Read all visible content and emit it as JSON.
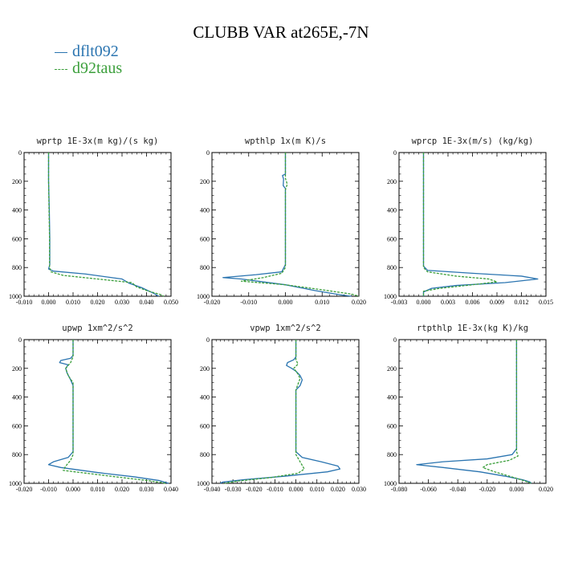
{
  "title": "CLUBB VAR at265E,-7N",
  "colors": {
    "dflt092": "#2a74b0",
    "d92taus": "#3b9f3b"
  },
  "legend": [
    {
      "name": "dflt092",
      "color": "#2a74b0",
      "style": "solid"
    },
    {
      "name": "d92taus",
      "color": "#3b9f3b",
      "style": "dashed"
    }
  ],
  "chart_data": [
    {
      "type": "line",
      "title": "wprtp  1E-3x(m kg)/(s kg)",
      "xlim": [
        -0.01,
        0.05
      ],
      "xticks": [
        -0.01,
        0.0,
        0.01,
        0.02,
        0.03,
        0.04,
        0.05
      ],
      "xtick_labels": [
        "-0.010",
        "0.000",
        "0.010",
        "0.020",
        "0.030",
        "0.040",
        "0.050"
      ],
      "ylim": [
        1000,
        0
      ],
      "yticks": [
        0,
        200,
        400,
        600,
        800,
        1000
      ],
      "ytick_labels": [
        "0",
        "200",
        "400",
        "600",
        "800",
        "1000"
      ],
      "series": [
        {
          "name": "dflt092",
          "points": [
            [
              0.0,
              0
            ],
            [
              0.0,
              200
            ],
            [
              0.0003,
              400
            ],
            [
              0.0005,
              600
            ],
            [
              0.0005,
              780
            ],
            [
              0.0,
              810
            ],
            [
              0.002,
              825
            ],
            [
              0.015,
              845
            ],
            [
              0.03,
              880
            ],
            [
              0.033,
              910
            ],
            [
              0.038,
              940
            ],
            [
              0.043,
              980
            ],
            [
              0.045,
              1000
            ]
          ]
        },
        {
          "name": "d92taus",
          "points": [
            [
              0.0,
              0
            ],
            [
              0.0,
              200
            ],
            [
              0.0002,
              400
            ],
            [
              0.0004,
              600
            ],
            [
              0.0004,
              800
            ],
            [
              0.001,
              830
            ],
            [
              0.006,
              855
            ],
            [
              0.02,
              880
            ],
            [
              0.034,
              905
            ],
            [
              0.036,
              935
            ],
            [
              0.04,
              960
            ],
            [
              0.046,
              990
            ],
            [
              0.047,
              1000
            ]
          ]
        }
      ]
    },
    {
      "type": "line",
      "title": "wpthlp  1x(m K)/s",
      "xlim": [
        -0.02,
        0.02
      ],
      "xticks": [
        -0.02,
        -0.01,
        0.0,
        0.01,
        0.02
      ],
      "xtick_labels": [
        "-0.020",
        "-0.010",
        "0.000",
        "0.010",
        "0.020"
      ],
      "ylim": [
        1000,
        0
      ],
      "yticks": [
        0,
        200,
        400,
        600,
        800,
        1000
      ],
      "ytick_labels": [
        "0",
        "200",
        "400",
        "600",
        "800",
        "1000"
      ],
      "series": [
        {
          "name": "dflt092",
          "points": [
            [
              0.0,
              0
            ],
            [
              0.0,
              150
            ],
            [
              -0.0008,
              160
            ],
            [
              -0.0005,
              185
            ],
            [
              -0.0006,
              230
            ],
            [
              0.0,
              250
            ],
            [
              0.0,
              400
            ],
            [
              0.0,
              600
            ],
            [
              0.0,
              780
            ],
            [
              -0.001,
              830
            ],
            [
              -0.008,
              850
            ],
            [
              -0.017,
              870
            ],
            [
              -0.012,
              880
            ],
            [
              0.0,
              920
            ],
            [
              0.008,
              960
            ],
            [
              0.015,
              990
            ],
            [
              0.018,
              1000
            ]
          ]
        },
        {
          "name": "d92taus",
          "points": [
            [
              0.0,
              0
            ],
            [
              0.0,
              180
            ],
            [
              0.0005,
              220
            ],
            [
              0.0,
              260
            ],
            [
              0.0,
              400
            ],
            [
              0.0,
              600
            ],
            [
              0.0,
              800
            ],
            [
              -0.001,
              840
            ],
            [
              -0.006,
              870
            ],
            [
              -0.012,
              895
            ],
            [
              0.0,
              920
            ],
            [
              0.01,
              955
            ],
            [
              0.018,
              985
            ],
            [
              0.02,
              1000
            ]
          ]
        }
      ]
    },
    {
      "type": "line",
      "title": "wprcp  1E-3x(m/s) (kg/kg)",
      "xlim": [
        -0.003,
        0.015
      ],
      "xticks": [
        -0.003,
        0.0,
        0.003,
        0.006,
        0.009,
        0.012,
        0.015
      ],
      "xtick_labels": [
        "-0.003",
        "0.000",
        "0.003",
        "0.006",
        "0.009",
        "0.012",
        "0.015"
      ],
      "ylim": [
        1000,
        0
      ],
      "yticks": [
        0,
        200,
        400,
        600,
        800,
        1000
      ],
      "ytick_labels": [
        "0",
        "200",
        "400",
        "600",
        "800",
        "1000"
      ],
      "series": [
        {
          "name": "dflt092",
          "points": [
            [
              0.0,
              0
            ],
            [
              0.0,
              200
            ],
            [
              0.0,
              400
            ],
            [
              0.0,
              600
            ],
            [
              0.0,
              790
            ],
            [
              0.0005,
              820
            ],
            [
              0.006,
              840
            ],
            [
              0.012,
              860
            ],
            [
              0.014,
              880
            ],
            [
              0.01,
              905
            ],
            [
              0.004,
              925
            ],
            [
              0.001,
              945
            ],
            [
              0.0,
              970
            ],
            [
              0.0,
              1000
            ]
          ]
        },
        {
          "name": "d92taus",
          "points": [
            [
              0.0,
              0
            ],
            [
              0.0,
              200
            ],
            [
              0.0,
              400
            ],
            [
              0.0,
              600
            ],
            [
              0.0,
              800
            ],
            [
              0.0005,
              830
            ],
            [
              0.004,
              860
            ],
            [
              0.008,
              880
            ],
            [
              0.009,
              900
            ],
            [
              0.006,
              920
            ],
            [
              0.002,
              945
            ],
            [
              0.0,
              965
            ],
            [
              0.0,
              1000
            ]
          ]
        }
      ]
    },
    {
      "type": "line",
      "title": "upwp  1xm^2/s^2",
      "xlim": [
        -0.02,
        0.04
      ],
      "xticks": [
        -0.02,
        -0.01,
        0.0,
        0.01,
        0.02,
        0.03,
        0.04
      ],
      "xtick_labels": [
        "-0.020",
        "-0.010",
        "0.000",
        "0.010",
        "0.020",
        "0.030",
        "0.040"
      ],
      "ylim": [
        1000,
        0
      ],
      "yticks": [
        0,
        200,
        400,
        600,
        800,
        1000
      ],
      "ytick_labels": [
        "0",
        "200",
        "400",
        "600",
        "800",
        "1000"
      ],
      "series": [
        {
          "name": "dflt092",
          "points": [
            [
              0.0,
              0
            ],
            [
              0.0,
              110
            ],
            [
              -0.001,
              130
            ],
            [
              -0.005,
              145
            ],
            [
              -0.0055,
              160
            ],
            [
              -0.002,
              175
            ],
            [
              -0.003,
              200
            ],
            [
              -0.0025,
              230
            ],
            [
              -0.001,
              280
            ],
            [
              0.0,
              320
            ],
            [
              0.0,
              500
            ],
            [
              0.0,
              700
            ],
            [
              0.0,
              780
            ],
            [
              -0.002,
              820
            ],
            [
              -0.008,
              850
            ],
            [
              -0.01,
              870
            ],
            [
              -0.005,
              890
            ],
            [
              0.01,
              925
            ],
            [
              0.025,
              955
            ],
            [
              0.035,
              980
            ],
            [
              0.039,
              1000
            ]
          ]
        },
        {
          "name": "d92taus",
          "points": [
            [
              0.0,
              0
            ],
            [
              0.0,
              120
            ],
            [
              -0.001,
              160
            ],
            [
              -0.003,
              200
            ],
            [
              -0.002,
              250
            ],
            [
              0.0,
              300
            ],
            [
              0.0,
              500
            ],
            [
              0.0,
              700
            ],
            [
              0.0,
              800
            ],
            [
              -0.001,
              840
            ],
            [
              -0.003,
              880
            ],
            [
              -0.004,
              910
            ],
            [
              0.008,
              935
            ],
            [
              0.02,
              960
            ],
            [
              0.03,
              980
            ],
            [
              0.038,
              1000
            ]
          ]
        }
      ]
    },
    {
      "type": "line",
      "title": "vpwp  1xm^2/s^2",
      "xlim": [
        -0.04,
        0.03
      ],
      "xticks": [
        -0.04,
        -0.03,
        -0.02,
        -0.01,
        0.0,
        0.01,
        0.02,
        0.03
      ],
      "xtick_labels": [
        "-0.040",
        "-0.030",
        "-0.020",
        "-0.010",
        "0.000",
        "0.010",
        "0.020",
        "0.030"
      ],
      "ylim": [
        1000,
        0
      ],
      "yticks": [
        0,
        200,
        400,
        600,
        800,
        1000
      ],
      "ytick_labels": [
        "0",
        "200",
        "400",
        "600",
        "800",
        "1000"
      ],
      "series": [
        {
          "name": "dflt092",
          "points": [
            [
              0.0,
              0
            ],
            [
              0.0,
              120
            ],
            [
              -0.001,
              140
            ],
            [
              -0.004,
              160
            ],
            [
              -0.0045,
              180
            ],
            [
              -0.002,
              200
            ],
            [
              0.0,
              220
            ],
            [
              0.002,
              250
            ],
            [
              0.003,
              280
            ],
            [
              0.002,
              320
            ],
            [
              0.0,
              350
            ],
            [
              0.0,
              500
            ],
            [
              0.0,
              700
            ],
            [
              0.0,
              780
            ],
            [
              0.003,
              820
            ],
            [
              0.012,
              850
            ],
            [
              0.02,
              880
            ],
            [
              0.021,
              900
            ],
            [
              0.015,
              920
            ],
            [
              -0.005,
              950
            ],
            [
              -0.025,
              975
            ],
            [
              -0.035,
              992
            ],
            [
              -0.036,
              1000
            ]
          ]
        },
        {
          "name": "d92taus",
          "points": [
            [
              0.0,
              0
            ],
            [
              0.0,
              140
            ],
            [
              0.001,
              170
            ],
            [
              -0.001,
              200
            ],
            [
              0.001,
              240
            ],
            [
              0.002,
              270
            ],
            [
              0.001,
              310
            ],
            [
              0.0,
              350
            ],
            [
              0.0,
              500
            ],
            [
              0.0,
              700
            ],
            [
              0.0,
              800
            ],
            [
              0.002,
              850
            ],
            [
              0.004,
              900
            ],
            [
              0.001,
              930
            ],
            [
              -0.012,
              960
            ],
            [
              -0.028,
              985
            ],
            [
              -0.034,
              1000
            ]
          ]
        }
      ]
    },
    {
      "type": "line",
      "title": "rtpthlp  1E-3x(kg K)/kg",
      "xlim": [
        -0.08,
        0.02
      ],
      "xticks": [
        -0.08,
        -0.06,
        -0.04,
        -0.02,
        0.0,
        0.02
      ],
      "xtick_labels": [
        "-0.080",
        "-0.060",
        "-0.040",
        "-0.020",
        "0.000",
        "0.020"
      ],
      "ylim": [
        1000,
        0
      ],
      "yticks": [
        0,
        200,
        400,
        600,
        800,
        1000
      ],
      "ytick_labels": [
        "0",
        "200",
        "400",
        "600",
        "800",
        "1000"
      ],
      "series": [
        {
          "name": "dflt092",
          "points": [
            [
              0.0,
              0
            ],
            [
              0.0,
              200
            ],
            [
              0.0,
              400
            ],
            [
              0.0,
              600
            ],
            [
              0.0,
              760
            ],
            [
              -0.003,
              800
            ],
            [
              -0.02,
              830
            ],
            [
              -0.05,
              850
            ],
            [
              -0.068,
              870
            ],
            [
              -0.05,
              890
            ],
            [
              -0.025,
              920
            ],
            [
              -0.008,
              950
            ],
            [
              0.004,
              975
            ],
            [
              0.009,
              990
            ],
            [
              0.01,
              1000
            ]
          ]
        },
        {
          "name": "d92taus",
          "points": [
            [
              0.0,
              0
            ],
            [
              0.0,
              200
            ],
            [
              0.0,
              400
            ],
            [
              0.0,
              600
            ],
            [
              0.0,
              780
            ],
            [
              0.001,
              810
            ],
            [
              -0.005,
              840
            ],
            [
              -0.02,
              870
            ],
            [
              -0.023,
              890
            ],
            [
              -0.015,
              920
            ],
            [
              -0.005,
              950
            ],
            [
              0.003,
              975
            ],
            [
              0.008,
              992
            ],
            [
              0.01,
              1000
            ]
          ]
        }
      ]
    }
  ]
}
